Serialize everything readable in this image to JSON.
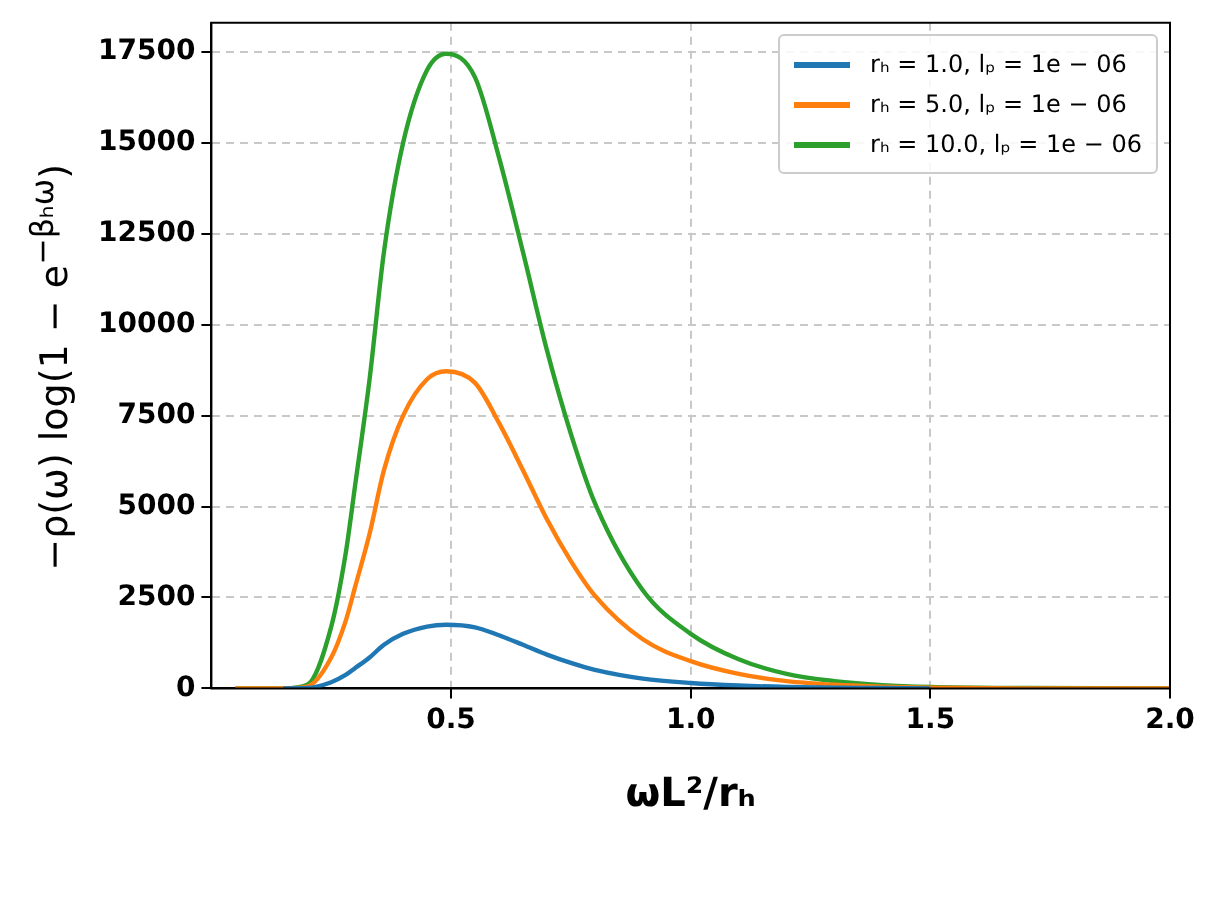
{
  "chart_data": {
    "type": "line",
    "xlabel": "ωL²/rₕ",
    "ylabel": "−ρ(ω) log(1 − e$^{−βₕω}$)",
    "x": [
      0.05,
      0.15,
      0.2,
      0.25,
      0.28,
      0.3,
      0.33,
      0.36,
      0.4,
      0.45,
      0.49,
      0.55,
      0.6,
      0.65,
      0.7,
      0.75,
      0.8,
      0.9,
      1.0,
      1.1,
      1.2,
      1.3,
      1.4,
      1.5,
      1.7,
      2.0
    ],
    "series": [
      {
        "name": "rₕ = 1.0, lₚ = 1e − 06",
        "color": "#1f77b4",
        "values": [
          null,
          0,
          10,
          170,
          370,
          560,
          850,
          1200,
          1500,
          1700,
          1750,
          1680,
          1460,
          1200,
          930,
          700,
          510,
          270,
          150,
          80,
          40,
          20,
          10,
          0,
          null,
          null
        ]
      },
      {
        "name": "rₕ = 5.0, lₚ = 1e − 06",
        "color": "#ff7f0e",
        "values": [
          0,
          0,
          50,
          850,
          1850,
          2800,
          4250,
          6000,
          7500,
          8500,
          8720,
          8400,
          7300,
          6000,
          4650,
          3500,
          2550,
          1350,
          750,
          400,
          200,
          100,
          50,
          20,
          0,
          0
        ]
      },
      {
        "name": "rₕ = 10.0, lₚ = 1e − 06",
        "color": "#2ca02c",
        "values": [
          0,
          0,
          100,
          1700,
          3700,
          5600,
          8500,
          12000,
          15000,
          17000,
          17450,
          16800,
          14600,
          12000,
          9300,
          7000,
          5100,
          2700,
          1500,
          800,
          400,
          200,
          90,
          40,
          10,
          0
        ]
      }
    ],
    "xlim": [
      0,
      2
    ],
    "xticks": [
      0.5,
      {
        "value": 1,
        "label": "1.0"
      },
      1.5,
      {
        "value": 2,
        "label": "2.0"
      }
    ],
    "ylim": [
      0,
      18300
    ],
    "yticks": [
      0,
      2500,
      5000,
      7500,
      10000,
      12500,
      15000,
      17500
    ],
    "grid": true,
    "legend": "top right",
    "marker": "none",
    "line_style": "solid"
  }
}
